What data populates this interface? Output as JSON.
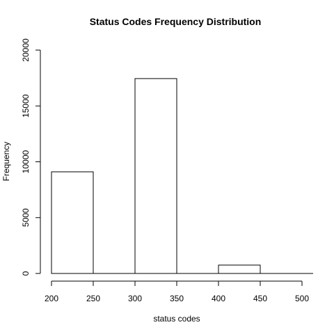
{
  "chart_data": {
    "type": "bar",
    "title": "Status Codes Frequency Distribution",
    "xlabel": "status codes",
    "ylabel": "Frequency",
    "bins": [
      {
        "start": 200,
        "end": 250,
        "value": 9100
      },
      {
        "start": 250,
        "end": 300,
        "value": 0
      },
      {
        "start": 300,
        "end": 350,
        "value": 17450
      },
      {
        "start": 350,
        "end": 400,
        "value": 0
      },
      {
        "start": 400,
        "end": 450,
        "value": 750
      },
      {
        "start": 450,
        "end": 500,
        "value": 0
      }
    ],
    "xlim": [
      200,
      500
    ],
    "ylim": [
      0,
      20000
    ],
    "x_ticks": [
      200,
      250,
      300,
      350,
      400,
      450,
      500
    ],
    "y_ticks": [
      0,
      5000,
      10000,
      15000,
      20000
    ],
    "grid": false,
    "bar_fill": "#ffffff",
    "bar_stroke": "#000000"
  }
}
